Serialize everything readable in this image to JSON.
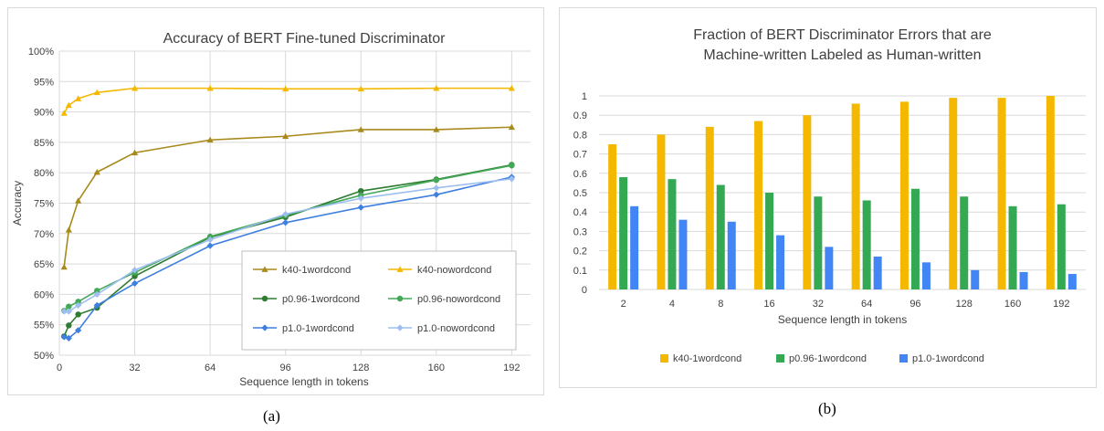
{
  "captions": {
    "a": "(a)",
    "b": "(b)"
  },
  "chart_data": [
    {
      "type": "line",
      "title": "Accuracy of BERT Fine-tuned Discriminator",
      "xlabel": "Sequence length in tokens",
      "ylabel": "Accuracy",
      "xlim": [
        0,
        200
      ],
      "xticks": [
        0,
        32,
        64,
        96,
        128,
        160,
        192
      ],
      "ylim": [
        0.5,
        1.0
      ],
      "yticks": [
        0.5,
        0.55,
        0.6,
        0.65,
        0.7,
        0.75,
        0.8,
        0.85,
        0.9,
        0.95,
        1.0
      ],
      "ytick_labels": [
        "50%",
        "55%",
        "60%",
        "65%",
        "70%",
        "75%",
        "80%",
        "85%",
        "90%",
        "95%",
        "100%"
      ],
      "grid": true,
      "legend": "bottom-right",
      "x": [
        2,
        4,
        8,
        16,
        32,
        64,
        96,
        128,
        160,
        192
      ],
      "series": [
        {
          "name": "k40-1wordcond",
          "color": "#a88a1c",
          "marker": "triangle",
          "values": [
            0.645,
            0.706,
            0.754,
            0.801,
            0.833,
            0.854,
            0.86,
            0.871,
            0.871,
            0.875
          ]
        },
        {
          "name": "k40-nowordcond",
          "color": "#f5b800",
          "marker": "triangle",
          "values": [
            0.898,
            0.911,
            0.922,
            0.932,
            0.939,
            0.939,
            0.938,
            0.938,
            0.939,
            0.939
          ]
        },
        {
          "name": "p0.96-1wordcond",
          "color": "#2e7d32",
          "marker": "circle",
          "values": [
            0.531,
            0.549,
            0.567,
            0.578,
            0.63,
            0.694,
            0.727,
            0.77,
            0.789,
            0.813
          ]
        },
        {
          "name": "p0.96-nowordcond",
          "color": "#43a857",
          "marker": "circle",
          "values": [
            0.573,
            0.58,
            0.588,
            0.606,
            0.636,
            0.695,
            0.73,
            0.763,
            0.788,
            0.812
          ]
        },
        {
          "name": "p1.0-1wordcond",
          "color": "#3f7fe0",
          "marker": "diamond",
          "values": [
            0.53,
            0.528,
            0.541,
            0.582,
            0.618,
            0.68,
            0.718,
            0.743,
            0.764,
            0.793
          ]
        },
        {
          "name": "p1.0-nowordcond",
          "color": "#9dbff0",
          "marker": "diamond",
          "values": [
            0.572,
            0.572,
            0.582,
            0.6,
            0.64,
            0.69,
            0.732,
            0.758,
            0.775,
            0.79
          ]
        }
      ]
    },
    {
      "type": "bar",
      "title": "Fraction of BERT Discriminator Errors that are",
      "title_line2": "Machine-written Labeled as Human-written",
      "xlabel": "Sequence length in tokens",
      "ylabel": "",
      "categories": [
        "2",
        "4",
        "8",
        "16",
        "32",
        "64",
        "96",
        "128",
        "160",
        "192"
      ],
      "ylim": [
        0,
        1
      ],
      "yticks": [
        0,
        0.1,
        0.2,
        0.3,
        0.4,
        0.5,
        0.6,
        0.7,
        0.8,
        0.9,
        1
      ],
      "ytick_labels": [
        "0",
        "0.1",
        "0.2",
        "0.3",
        "0.4",
        "0.5",
        "0.6",
        "0.7",
        "0.8",
        "0.9",
        "1"
      ],
      "grid": true,
      "legend": "bottom-center",
      "series": [
        {
          "name": "k40-1wordcond",
          "color": "#f5b800",
          "values": [
            0.75,
            0.8,
            0.84,
            0.87,
            0.9,
            0.96,
            0.97,
            0.99,
            0.99,
            1.0
          ]
        },
        {
          "name": "p0.96-1wordcond",
          "color": "#34a853",
          "values": [
            0.58,
            0.57,
            0.54,
            0.5,
            0.48,
            0.46,
            0.52,
            0.48,
            0.43,
            0.44
          ]
        },
        {
          "name": "p1.0-1wordcond",
          "color": "#4285f4",
          "values": [
            0.43,
            0.36,
            0.35,
            0.28,
            0.22,
            0.17,
            0.14,
            0.1,
            0.09,
            0.08
          ]
        }
      ]
    }
  ]
}
